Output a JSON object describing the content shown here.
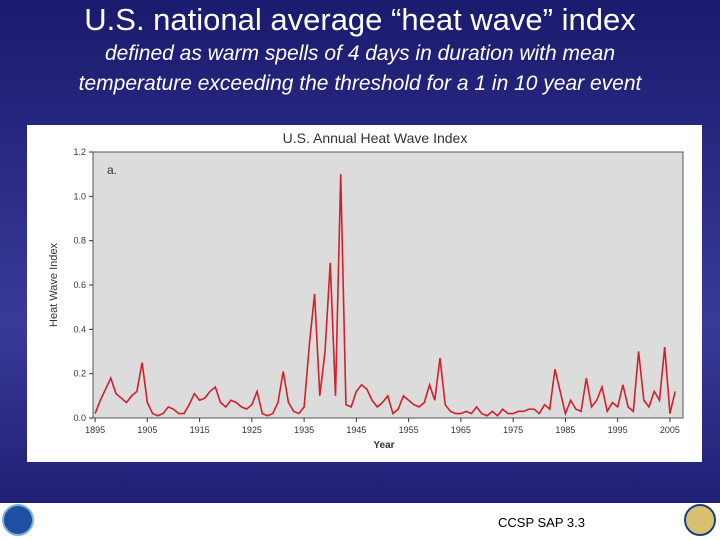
{
  "title": "U.S. national average “heat wave” index",
  "subtitle": [
    "defined as warm spells of 4 days in duration with mean",
    "temperature exceeding the threshold for a 1 in 10 year event"
  ],
  "footer": "CCSP SAP 3.3",
  "chart_data": {
    "type": "line",
    "title": "U.S. Annual Heat Wave Index",
    "panel_label": "a.",
    "x_label": "Year",
    "y_label": "Heat Wave Index",
    "x": [
      1895,
      1896,
      1897,
      1898,
      1899,
      1900,
      1901,
      1902,
      1903,
      1904,
      1905,
      1906,
      1907,
      1908,
      1909,
      1910,
      1911,
      1912,
      1913,
      1914,
      1915,
      1916,
      1917,
      1918,
      1919,
      1920,
      1921,
      1922,
      1923,
      1924,
      1925,
      1926,
      1927,
      1928,
      1929,
      1930,
      1931,
      1932,
      1933,
      1934,
      1935,
      1936,
      1937,
      1938,
      1939,
      1940,
      1941,
      1942,
      1943,
      1944,
      1945,
      1946,
      1947,
      1948,
      1949,
      1950,
      1951,
      1952,
      1953,
      1954,
      1955,
      1956,
      1957,
      1958,
      1959,
      1960,
      1961,
      1962,
      1963,
      1964,
      1965,
      1966,
      1967,
      1968,
      1969,
      1970,
      1971,
      1972,
      1973,
      1974,
      1975,
      1976,
      1977,
      1978,
      1979,
      1980,
      1981,
      1982,
      1983,
      1984,
      1985,
      1986,
      1987,
      1988,
      1989,
      1990,
      1991,
      1992,
      1993,
      1994,
      1995,
      1996,
      1997,
      1998,
      1999,
      2000,
      2001,
      2002,
      2003,
      2004,
      2005,
      2006
    ],
    "series": [
      {
        "name": "Heat Wave Index",
        "color": "#d0202a",
        "values": [
          0.02,
          0.08,
          0.13,
          0.18,
          0.11,
          0.09,
          0.07,
          0.1,
          0.12,
          0.25,
          0.07,
          0.02,
          0.01,
          0.02,
          0.05,
          0.04,
          0.02,
          0.02,
          0.06,
          0.11,
          0.08,
          0.09,
          0.12,
          0.14,
          0.07,
          0.05,
          0.08,
          0.07,
          0.05,
          0.04,
          0.06,
          0.12,
          0.02,
          0.01,
          0.02,
          0.07,
          0.21,
          0.07,
          0.03,
          0.02,
          0.05,
          0.33,
          0.56,
          0.1,
          0.3,
          0.7,
          0.1,
          1.1,
          0.06,
          0.05,
          0.12,
          0.15,
          0.13,
          0.08,
          0.05,
          0.07,
          0.1,
          0.02,
          0.04,
          0.1,
          0.08,
          0.06,
          0.05,
          0.07,
          0.15,
          0.08,
          0.27,
          0.06,
          0.03,
          0.02,
          0.02,
          0.03,
          0.02,
          0.05,
          0.02,
          0.01,
          0.03,
          0.01,
          0.04,
          0.02,
          0.02,
          0.03,
          0.03,
          0.04,
          0.04,
          0.02,
          0.06,
          0.04,
          0.22,
          0.12,
          0.02,
          0.08,
          0.04,
          0.03,
          0.18,
          0.05,
          0.08,
          0.14,
          0.03,
          0.07,
          0.05,
          0.15,
          0.05,
          0.03,
          0.3,
          0.08,
          0.05,
          0.12,
          0.08,
          0.32,
          0.02,
          0.12
        ]
      }
    ],
    "xlim": [
      1894.6,
      2007.5
    ],
    "xticks": [
      1895,
      1905,
      1915,
      1925,
      1935,
      1945,
      1955,
      1965,
      1975,
      1985,
      1995,
      2005
    ],
    "ylim": [
      0,
      1.2
    ],
    "yticks": [
      {
        "value": 0,
        "label": "0.0"
      },
      0.2,
      0.4,
      0.6,
      0.8,
      {
        "value": 1,
        "label": "1.0"
      },
      1.2
    ]
  }
}
